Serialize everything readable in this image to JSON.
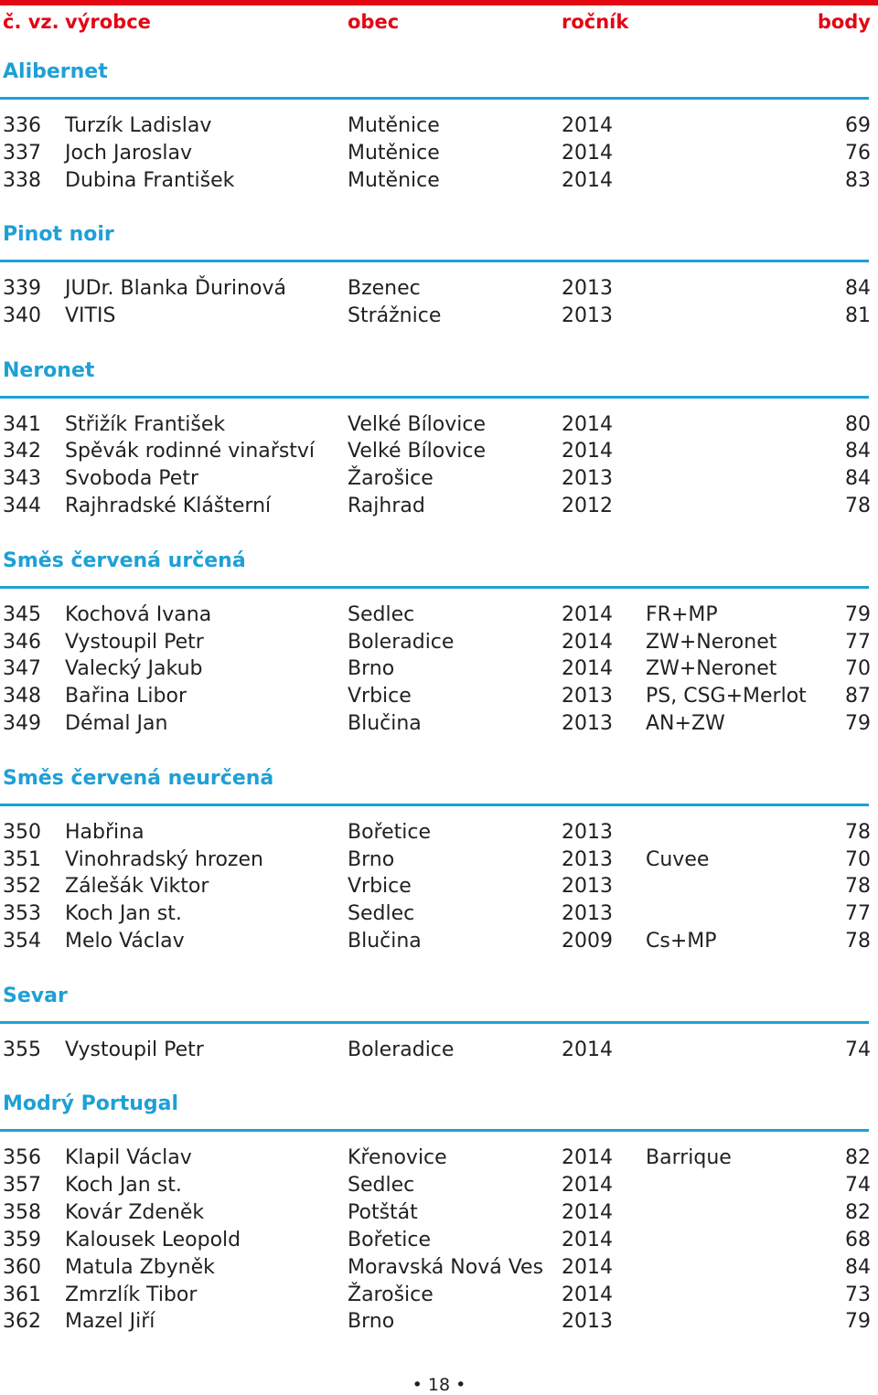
{
  "colors": {
    "accent_red": "#e30613",
    "accent_blue": "#1ea0d6",
    "text": "#231f20"
  },
  "header": {
    "num": "č. vz.",
    "producer": "výrobce",
    "town": "obec",
    "year": "ročník",
    "points": "body"
  },
  "sections": [
    {
      "title": "Alibernet",
      "rows": [
        {
          "num": "336",
          "name": "Turzík Ladislav",
          "town": "Mutěnice",
          "year": "2014",
          "note": "",
          "points": "69"
        },
        {
          "num": "337",
          "name": "Joch Jaroslav",
          "town": "Mutěnice",
          "year": "2014",
          "note": "",
          "points": "76"
        },
        {
          "num": "338",
          "name": "Dubina František",
          "town": "Mutěnice",
          "year": "2014",
          "note": "",
          "points": "83"
        }
      ]
    },
    {
      "title": "Pinot noir",
      "rows": [
        {
          "num": "339",
          "name": "JUDr. Blanka Ďurinová",
          "town": "Bzenec",
          "year": "2013",
          "note": "",
          "points": "84"
        },
        {
          "num": "340",
          "name": "VITIS",
          "town": "Strážnice",
          "year": "2013",
          "note": "",
          "points": "81"
        }
      ]
    },
    {
      "title": "Neronet",
      "rows": [
        {
          "num": "341",
          "name": "Střižík František",
          "town": "Velké Bílovice",
          "year": "2014",
          "note": "",
          "points": "80"
        },
        {
          "num": "342",
          "name": "Spěvák rodinné vinařství",
          "town": "Velké Bílovice",
          "year": "2014",
          "note": "",
          "points": "84"
        },
        {
          "num": "343",
          "name": "Svoboda Petr",
          "town": "Žarošice",
          "year": "2013",
          "note": "",
          "points": "84"
        },
        {
          "num": "344",
          "name": "Rajhradské Klášterní",
          "town": "Rajhrad",
          "year": "2012",
          "note": "",
          "points": "78"
        }
      ]
    },
    {
      "title": "Směs červená určená",
      "rows": [
        {
          "num": "345",
          "name": "Kochová Ivana",
          "town": "Sedlec",
          "year": "2014",
          "note": "FR+MP",
          "points": "79"
        },
        {
          "num": "346",
          "name": "Vystoupil Petr",
          "town": "Boleradice",
          "year": "2014",
          "note": "ZW+Neronet",
          "points": "77"
        },
        {
          "num": "347",
          "name": "Valecký Jakub",
          "town": "Brno",
          "year": "2014",
          "note": "ZW+Neronet",
          "points": "70"
        },
        {
          "num": "348",
          "name": "Bařina Libor",
          "town": "Vrbice",
          "year": "2013",
          "note": "PS, CSG+Merlot",
          "points": "87"
        },
        {
          "num": "349",
          "name": "Démal Jan",
          "town": "Blučina",
          "year": "2013",
          "note": "AN+ZW",
          "points": "79"
        }
      ]
    },
    {
      "title": "Směs červená neurčená",
      "rows": [
        {
          "num": "350",
          "name": "Habřina",
          "town": "Bořetice",
          "year": "2013",
          "note": "",
          "points": "78"
        },
        {
          "num": "351",
          "name": "Vinohradský hrozen",
          "town": "Brno",
          "year": "2013",
          "note": "Cuvee",
          "points": "70"
        },
        {
          "num": "352",
          "name": "Zálešák Viktor",
          "town": "Vrbice",
          "year": "2013",
          "note": "",
          "points": "78"
        },
        {
          "num": "353",
          "name": "Koch Jan st.",
          "town": "Sedlec",
          "year": "2013",
          "note": "",
          "points": "77"
        },
        {
          "num": "354",
          "name": "Melo Václav",
          "town": "Blučina",
          "year": "2009",
          "note": "Cs+MP",
          "points": "78"
        }
      ]
    },
    {
      "title": "Sevar",
      "rows": [
        {
          "num": "355",
          "name": "Vystoupil Petr",
          "town": "Boleradice",
          "year": "2014",
          "note": "",
          "points": "74"
        }
      ]
    },
    {
      "title": "Modrý Portugal",
      "rows": [
        {
          "num": "356",
          "name": "Klapil Václav",
          "town": "Křenovice",
          "year": "2014",
          "note": "Barrique",
          "points": "82"
        },
        {
          "num": "357",
          "name": "Koch Jan st.",
          "town": "Sedlec",
          "year": "2014",
          "note": "",
          "points": "74"
        },
        {
          "num": "358",
          "name": "Kovár Zdeněk",
          "town": "Potštát",
          "year": "2014",
          "note": "",
          "points": "82"
        },
        {
          "num": "359",
          "name": "Kalousek Leopold",
          "town": "Bořetice",
          "year": "2014",
          "note": "",
          "points": "68"
        },
        {
          "num": "360",
          "name": "Matula Zbyněk",
          "town": "Moravská Nová Ves",
          "year": "2014",
          "note": "",
          "points": "84"
        },
        {
          "num": "361",
          "name": "Zmrzlík Tibor",
          "town": "Žarošice",
          "year": "2014",
          "note": "",
          "points": "73"
        },
        {
          "num": "362",
          "name": "Mazel Jiří",
          "town": "Brno",
          "year": "2013",
          "note": "",
          "points": "79"
        }
      ]
    }
  ],
  "footer": {
    "page": "• 18 •"
  }
}
